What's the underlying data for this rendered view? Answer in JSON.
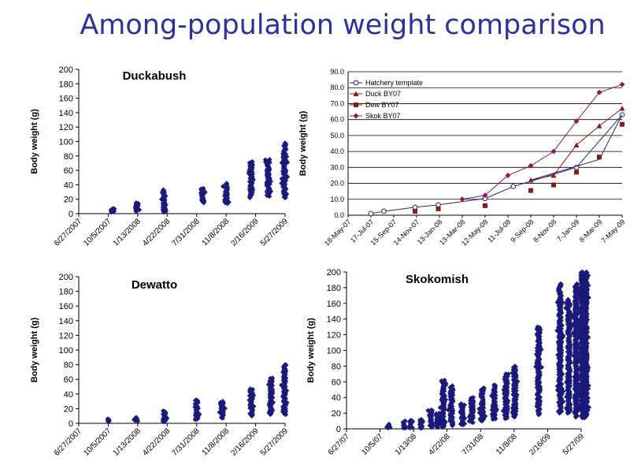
{
  "title": "Among-population weight comparison",
  "chart_data": [
    {
      "type": "scatter",
      "title": "Duckabush",
      "ylabel": "Body weight (g)",
      "xlabel": "",
      "ylim": [
        0,
        200
      ],
      "yticks": [
        "0",
        "20",
        "40",
        "60",
        "80",
        "100",
        "120",
        "140",
        "160",
        "180",
        "200"
      ],
      "xticks": [
        "6/27/2007",
        "10/5/2007",
        "1/13/2008",
        "4/22/2008",
        "7/31/2008",
        "11/8/2008",
        "2/16/2009",
        "5/27/2009"
      ],
      "marker_color": "#1a1a7a",
      "grid": false,
      "clusters": [
        {
          "x": "10/20/2007",
          "min": 2,
          "max": 7
        },
        {
          "x": "1/10/2008",
          "min": 3,
          "max": 15
        },
        {
          "x": "4/12/2008",
          "min": 2,
          "max": 33
        },
        {
          "x": "8/20/2008",
          "min": 15,
          "max": 35
        },
        {
          "x": "11/8/2008",
          "min": 14,
          "max": 42
        },
        {
          "x": "2/1/2009",
          "min": 22,
          "max": 72
        },
        {
          "x": "3/31/2009",
          "min": 24,
          "max": 75
        },
        {
          "x": "5/25/2009",
          "min": 22,
          "max": 98
        }
      ]
    },
    {
      "type": "line",
      "title": "",
      "ylabel": "Body weight (g)",
      "xlabel": "",
      "ylim": [
        0,
        90
      ],
      "yticks": [
        "0.0",
        "10.0",
        "20.0",
        "30.0",
        "40.0",
        "50.0",
        "60.0",
        "70.0",
        "80.0",
        "90.0"
      ],
      "xticks": [
        "18-May-07",
        "17-Jul-07",
        "15-Sep-07",
        "14-Nov-07",
        "13-Jan-08",
        "13-Mar-08",
        "12-May-08",
        "11-Jul-08",
        "9-Sep-08",
        "8-Nov-08",
        "7-Jan-09",
        "8-Mar-09",
        "7-May-09"
      ],
      "xticks_x": [
        "5/18/2007",
        "7/17/2007",
        "9/15/2007",
        "11/14/2007",
        "1/13/2008",
        "3/13/2008",
        "5/12/2008",
        "7/11/2008",
        "9/9/2008",
        "11/8/2008",
        "1/7/2009",
        "3/8/2009",
        "5/7/2009"
      ],
      "grid": true,
      "legend_position": "top-left",
      "series": [
        {
          "name": "Hatchery template",
          "color": "#1f2a6e",
          "marker": "circle-open",
          "line": true,
          "x": [
            "7/17/2007",
            "8/20/2007",
            "11/10/2007",
            "1/10/2008",
            "5/12/2008",
            "7/25/2008",
            "1/7/2009",
            "5/7/2009"
          ],
          "y": [
            1.0,
            2.5,
            5.0,
            6.5,
            10.5,
            18.0,
            30.0,
            63.0
          ]
        },
        {
          "name": "Duck BY07",
          "color": "#8b1a1a",
          "marker": "triangle",
          "line": true,
          "x": [
            "9/9/2008",
            "11/8/2008",
            "1/7/2009",
            "3/8/2009",
            "5/7/2009"
          ],
          "y": [
            22.0,
            25.0,
            44.0,
            56.0,
            67.0
          ]
        },
        {
          "name": "Dew BY07",
          "color": "#8b1a1a",
          "marker": "square",
          "line": false,
          "x": [
            "11/10/2007",
            "1/10/2008",
            "5/12/2008",
            "9/9/2008",
            "11/8/2008",
            "1/7/2009",
            "3/8/2009",
            "5/7/2009"
          ],
          "y": [
            2.5,
            4.0,
            6.0,
            15.5,
            19.0,
            27.0,
            36.5,
            57.0
          ]
        },
        {
          "name": "Skok BY07",
          "color": "#8b1a5a",
          "marker": "diamond",
          "line": true,
          "x": [
            "3/13/2008",
            "5/12/2008",
            "7/11/2008",
            "9/9/2008",
            "11/8/2008",
            "1/7/2009",
            "3/8/2009",
            "5/7/2009"
          ],
          "y": [
            10.0,
            12.5,
            25.0,
            31.0,
            40.0,
            59.0,
            77.0,
            82.0
          ]
        },
        {
          "name": "",
          "color": "#1f2a6e",
          "marker": "none",
          "line": true,
          "x": [
            "9/9/2008",
            "3/8/2009",
            "5/7/2009"
          ],
          "y": [
            22.0,
            35.0,
            63.0
          ]
        }
      ]
    },
    {
      "type": "scatter",
      "title": "Dewatto",
      "ylabel": "Body weight (g)",
      "xlabel": "",
      "ylim": [
        0,
        200
      ],
      "yticks": [
        "0",
        "20",
        "40",
        "60",
        "80",
        "100",
        "120",
        "140",
        "160",
        "180",
        "200"
      ],
      "xticks": [
        "6/27/2007",
        "10/5/2007",
        "1/13/2008",
        "4/22/2008",
        "7/31/2008",
        "11/8/2008",
        "2/16/2009",
        "5/27/2009"
      ],
      "marker_color": "#1a1a7a",
      "grid": false,
      "clusters": [
        {
          "x": "10/8/2007",
          "min": 2,
          "max": 6
        },
        {
          "x": "1/10/2008",
          "min": 3,
          "max": 8
        },
        {
          "x": "4/12/2008",
          "min": 2,
          "max": 17
        },
        {
          "x": "7/31/2008",
          "min": 5,
          "max": 32
        },
        {
          "x": "10/25/2008",
          "min": 7,
          "max": 30
        },
        {
          "x": "2/1/2009",
          "min": 10,
          "max": 47
        },
        {
          "x": "4/10/2009",
          "min": 12,
          "max": 62
        },
        {
          "x": "5/25/2009",
          "min": 12,
          "max": 80
        }
      ]
    },
    {
      "type": "scatter",
      "title": "Skokomish",
      "ylabel": "Body weight (g)",
      "xlabel": "",
      "ylim": [
        0,
        200
      ],
      "yticks": [
        "0",
        "20",
        "40",
        "60",
        "80",
        "100",
        "120",
        "140",
        "160",
        "180",
        "200"
      ],
      "xticks": [
        "6/27/07",
        "10/5/07",
        "1/13/08",
        "4/22/08",
        "7/31/08",
        "11/8/08",
        "2/16/09",
        "5/27/09"
      ],
      "marker_color": "#1a1a7a",
      "grid": false,
      "clusters": [
        {
          "x": "11/1/2007",
          "min": 1,
          "max": 6
        },
        {
          "x": "12/15/2007",
          "min": 1,
          "max": 10
        },
        {
          "x": "1/5/2008",
          "min": 1,
          "max": 11
        },
        {
          "x": "2/5/2008",
          "min": 1,
          "max": 12
        },
        {
          "x": "3/5/2008",
          "min": 2,
          "max": 24
        },
        {
          "x": "3/25/2008",
          "min": 2,
          "max": 20
        },
        {
          "x": "4/10/2008",
          "min": 2,
          "max": 62
        },
        {
          "x": "5/5/2008",
          "min": 4,
          "max": 55
        },
        {
          "x": "6/5/2008",
          "min": 5,
          "max": 32
        },
        {
          "x": "7/5/2008",
          "min": 8,
          "max": 40
        },
        {
          "x": "8/5/2008",
          "min": 10,
          "max": 52
        },
        {
          "x": "9/10/2008",
          "min": 12,
          "max": 56
        },
        {
          "x": "10/15/2008",
          "min": 13,
          "max": 70
        },
        {
          "x": "11/10/2008",
          "min": 15,
          "max": 80
        },
        {
          "x": "1/20/2009",
          "min": 18,
          "max": 130
        },
        {
          "x": "3/25/2009",
          "min": 20,
          "max": 185
        },
        {
          "x": "4/20/2009",
          "min": 20,
          "max": 165
        },
        {
          "x": "5/12/2009",
          "min": 15,
          "max": 185
        },
        {
          "x": "5/30/2009",
          "min": 14,
          "max": 200
        },
        {
          "x": "6/10/2009",
          "min": 14,
          "max": 200
        }
      ]
    }
  ]
}
